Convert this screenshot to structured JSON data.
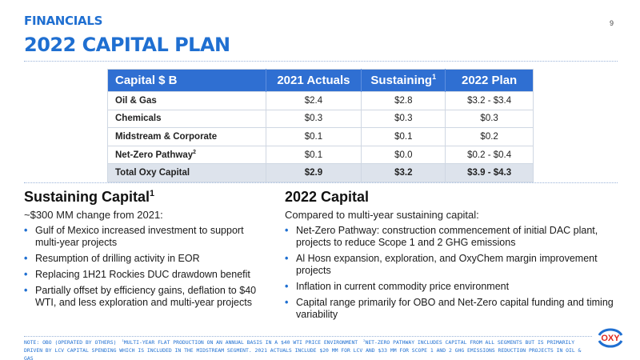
{
  "header": {
    "section": "FINANCIALS",
    "title": "2022 CAPITAL PLAN",
    "page_number": "9"
  },
  "table": {
    "headers": [
      "Capital $ B",
      "2021 Actuals",
      "Sustaining",
      "2022 Plan"
    ],
    "header_sup": "1",
    "rows": [
      {
        "label": "Oil & Gas",
        "sup": "",
        "values": [
          "$2.4",
          "$2.8",
          "$3.2 - $3.4"
        ]
      },
      {
        "label": "Chemicals",
        "sup": "",
        "values": [
          "$0.3",
          "$0.3",
          "$0.3"
        ]
      },
      {
        "label": "Midstream & Corporate",
        "sup": "",
        "values": [
          "$0.1",
          "$0.1",
          "$0.2"
        ]
      },
      {
        "label": "Net-Zero Pathway",
        "sup": "2",
        "values": [
          "$0.1",
          "$0.0",
          "$0.2 - $0.4"
        ]
      },
      {
        "label": "Total Oxy Capital",
        "sup": "",
        "values": [
          "$2.9",
          "$3.2",
          "$3.9 - $4.3"
        ]
      }
    ]
  },
  "left": {
    "heading": "Sustaining Capital",
    "heading_sup": "1",
    "subheading": "~$300 MM change from 2021:",
    "bullets": [
      "Gulf of Mexico increased investment to support multi-year projects",
      "Resumption of drilling activity in EOR",
      "Replacing 1H21 Rockies DUC drawdown benefit",
      "Partially offset by efficiency gains, deflation to $40 WTI, and less exploration and multi-year projects"
    ]
  },
  "right": {
    "heading": "2022 Capital",
    "subheading": "Compared to multi-year sustaining capital:",
    "bullets": [
      "Net-Zero Pathway: construction commencement of initial DAC plant, projects to reduce Scope 1 and 2 GHG emissions",
      "Al Hosn expansion, exploration, and OxyChem margin improvement projects",
      "Inflation in current commodity price environment",
      "Capital range primarily for OBO and Net-Zero capital funding and timing variability"
    ]
  },
  "footnotes": {
    "note": "Note: OBO (Operated by Others)",
    "fn1": "Multi-year flat production on an annual basis in a $40 WTI price environment",
    "fn2": "Net-Zero Pathway includes capital from all segments but is primarily driven by LCV capital spending which is included in the Midstream segment. 2021 actuals include $20 MM for LCV and $33 MM for Scope 1 and 2 GHG emissions reduction projects in Oil & Gas"
  },
  "logo": {
    "text": "OXY",
    "brand_color": "#e1261c",
    "accent_color": "#1f6fd1"
  }
}
